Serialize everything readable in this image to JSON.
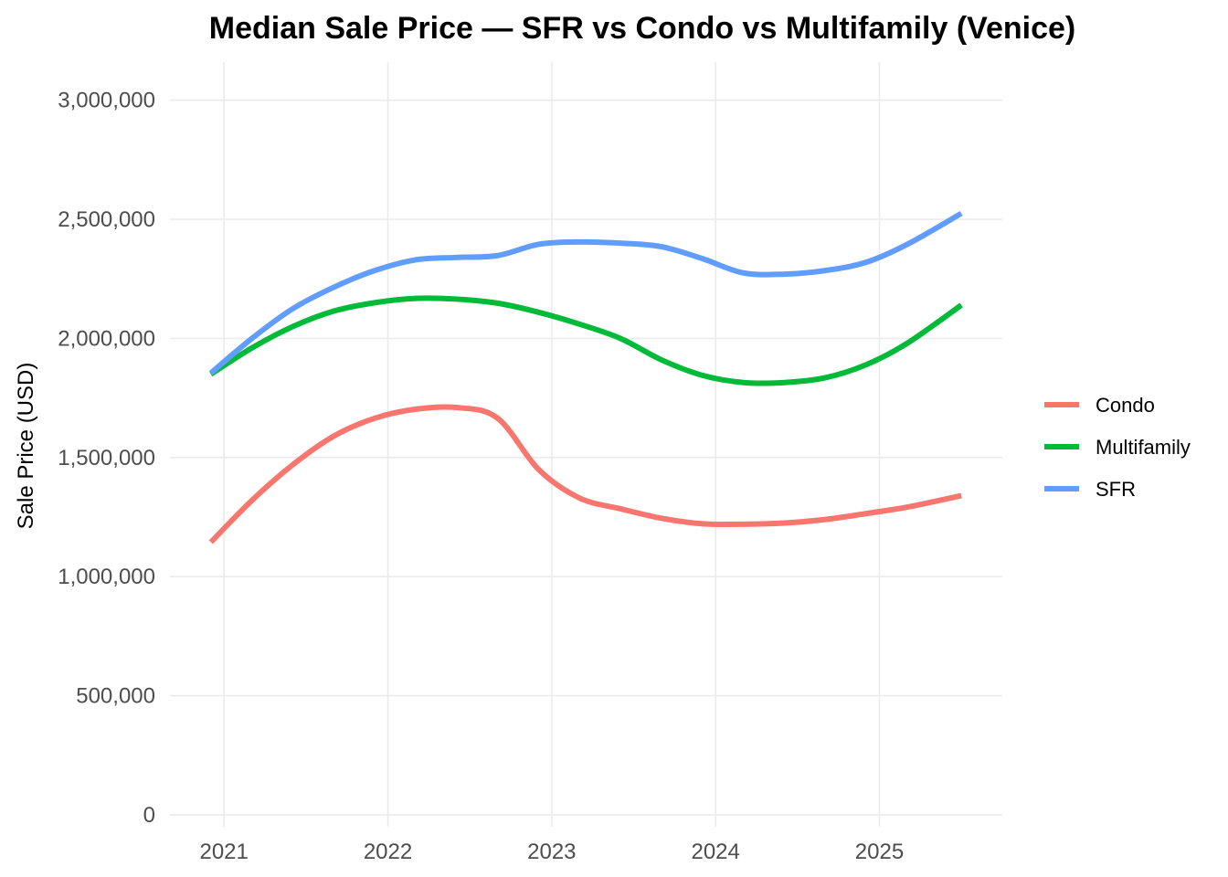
{
  "chart_data": {
    "type": "line",
    "title": "Median Sale Price — SFR vs Condo vs Multifamily (Venice)",
    "xlabel": "",
    "ylabel": "Sale Price (USD)",
    "x_ticks": [
      2021,
      2022,
      2023,
      2024,
      2025
    ],
    "x_tick_labels": [
      "2021",
      "2022",
      "2023",
      "2024",
      "2025"
    ],
    "xlim": [
      2020.67,
      2025.75
    ],
    "y_ticks": [
      0,
      500000,
      1000000,
      1500000,
      2000000,
      2500000,
      3000000
    ],
    "y_tick_labels": [
      "0",
      "500,000",
      "1,000,000",
      "1,500,000",
      "2,000,000",
      "2,500,000",
      "3,000,000"
    ],
    "ylim": [
      -50000,
      3160000
    ],
    "grid": true,
    "legend_position": "right",
    "x": [
      2020.92,
      2021.17,
      2021.42,
      2021.67,
      2021.92,
      2022.17,
      2022.42,
      2022.67,
      2022.92,
      2023.17,
      2023.42,
      2023.67,
      2023.92,
      2024.17,
      2024.42,
      2024.67,
      2024.92,
      2025.17,
      2025.5
    ],
    "series": [
      {
        "name": "Condo",
        "color": "#F8766D",
        "values": [
          1145000,
          1320000,
          1470000,
          1590000,
          1665000,
          1703000,
          1710000,
          1665000,
          1450000,
          1330000,
          1285000,
          1245000,
          1222000,
          1220000,
          1225000,
          1240000,
          1265000,
          1292000,
          1340000
        ]
      },
      {
        "name": "Multifamily",
        "color": "#00BA38",
        "values": [
          1850000,
          1960000,
          2050000,
          2115000,
          2150000,
          2168000,
          2165000,
          2148000,
          2110000,
          2060000,
          2000000,
          1910000,
          1845000,
          1815000,
          1815000,
          1835000,
          1890000,
          1980000,
          2140000
        ]
      },
      {
        "name": "SFR",
        "color": "#619CFF",
        "values": [
          1855000,
          2000000,
          2125000,
          2215000,
          2285000,
          2330000,
          2340000,
          2348000,
          2395000,
          2405000,
          2400000,
          2385000,
          2335000,
          2275000,
          2270000,
          2285000,
          2320000,
          2395000,
          2525000
        ]
      }
    ]
  }
}
